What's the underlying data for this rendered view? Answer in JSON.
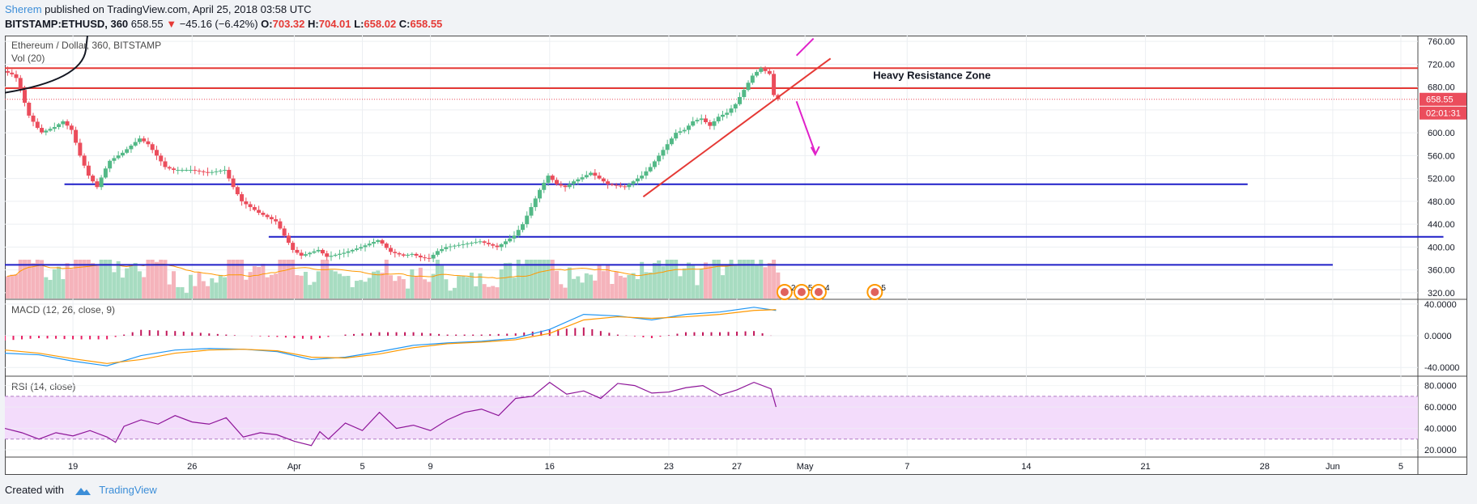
{
  "header": {
    "author": "Sherem",
    "published_text": "published on TradingView.com, April 25, 2018 03:58 UTC",
    "symbol": "BITSTAMP:ETHUSD, 360",
    "last": "658.55",
    "change": "−45.16 (−6.42%)",
    "o_label": "O:",
    "o_value": "703.32",
    "h_label": "H:",
    "h_value": "704.01",
    "l_label": "L:",
    "l_value": "658.02",
    "c_label": "C:",
    "c_value": "658.55"
  },
  "footer": {
    "created_with": "Created with",
    "brand": "TradingView"
  },
  "colors": {
    "up": "#53b987",
    "down": "#eb4d5c",
    "support": "#1f1fc8",
    "resistance": "#e53935",
    "annotation_arrow": "#e021c9",
    "macd": "#2196f3",
    "signal": "#ff9800",
    "rsi_line": "#8e1599",
    "rsi_band": "#f3dcfb",
    "vol_ma": "#ff9800"
  },
  "chart_data": [
    {
      "type": "candlestick",
      "title": "Ethereum / Dollar, 360, BITSTAMP",
      "ylim": [
        310,
        770
      ],
      "yticks": [
        "760.00",
        "720.00",
        "680.00",
        "640.00",
        "600.00",
        "560.00",
        "520.00",
        "480.00",
        "440.00",
        "400.00",
        "360.00",
        "320.00"
      ],
      "ytick_values": [
        760,
        720,
        680,
        640,
        600,
        560,
        520,
        480,
        440,
        400,
        360,
        320
      ],
      "xticks": [
        "19",
        "26",
        "Apr",
        "5",
        "9",
        "16",
        "23",
        "27",
        "May",
        "7",
        "14",
        "21",
        "28",
        "Jun",
        "5"
      ],
      "xtick_days": [
        4,
        11,
        17,
        21,
        25,
        32,
        39,
        43,
        47,
        53,
        60,
        67,
        74,
        78,
        82
      ],
      "x_range_days": [
        0,
        83
      ],
      "price_path": [
        [
          0,
          708
        ],
        [
          0.7,
          700
        ],
        [
          1,
          675
        ],
        [
          1.5,
          630
        ],
        [
          2.2,
          600
        ],
        [
          3,
          610
        ],
        [
          3.5,
          620
        ],
        [
          4,
          605
        ],
        [
          4.5,
          560
        ],
        [
          5,
          525
        ],
        [
          5.5,
          505
        ],
        [
          5.8,
          525
        ],
        [
          6.2,
          550
        ],
        [
          7,
          565
        ],
        [
          8,
          590
        ],
        [
          8.5,
          580
        ],
        [
          9,
          560
        ],
        [
          9.5,
          540
        ],
        [
          10,
          535
        ],
        [
          11,
          535
        ],
        [
          12,
          530
        ],
        [
          13,
          535
        ],
        [
          13.5,
          505
        ],
        [
          14,
          480
        ],
        [
          15,
          460
        ],
        [
          16,
          445
        ],
        [
          16.5,
          420
        ],
        [
          17,
          395
        ],
        [
          17.5,
          385
        ],
        [
          18.5,
          395
        ],
        [
          19,
          383
        ],
        [
          20,
          390
        ],
        [
          21,
          400
        ],
        [
          22,
          412
        ],
        [
          22.3,
          405
        ],
        [
          22.7,
          392
        ],
        [
          23.5,
          385
        ],
        [
          24,
          388
        ],
        [
          24.5,
          382
        ],
        [
          25,
          380
        ],
        [
          25.5,
          393
        ],
        [
          26,
          400
        ],
        [
          27,
          405
        ],
        [
          28,
          410
        ],
        [
          29,
          400
        ],
        [
          30,
          420
        ],
        [
          30.5,
          440
        ],
        [
          31,
          470
        ],
        [
          31.5,
          500
        ],
        [
          32,
          525
        ],
        [
          32.5,
          510
        ],
        [
          33,
          505
        ],
        [
          33.5,
          515
        ],
        [
          34,
          522
        ],
        [
          34.5,
          530
        ],
        [
          35,
          520
        ],
        [
          35.5,
          510
        ],
        [
          36.5,
          505
        ],
        [
          37,
          515
        ],
        [
          37.5,
          525
        ],
        [
          38,
          540
        ],
        [
          38.5,
          560
        ],
        [
          39,
          580
        ],
        [
          39.5,
          600
        ],
        [
          40,
          605
        ],
        [
          40.5,
          620
        ],
        [
          41,
          625
        ],
        [
          41.5,
          612
        ],
        [
          42,
          628
        ],
        [
          42.5,
          635
        ],
        [
          43,
          650
        ],
        [
          43.5,
          675
        ],
        [
          44,
          700
        ],
        [
          44.5,
          713
        ],
        [
          45,
          703
        ],
        [
          45.3,
          658.55
        ]
      ],
      "annotations": [
        {
          "text": "Heavy Resistance Zone",
          "day": 51,
          "price": 694
        },
        {
          "text": "02:01:31",
          "role": "countdown"
        },
        {
          "text": "658.55",
          "role": "last-price"
        }
      ],
      "horizontal_lines": [
        {
          "color": "resistance",
          "price": 713,
          "from_day": 0,
          "to_day": 83
        },
        {
          "color": "resistance",
          "price": 678,
          "from_day": 0,
          "to_day": 83
        },
        {
          "color": "support",
          "price": 510,
          "from_day": 3.5,
          "to_day": 73
        },
        {
          "color": "support",
          "price": 418,
          "from_day": 15.5,
          "to_day": 84.5
        },
        {
          "color": "support",
          "price": 369,
          "from_day": 0,
          "to_day": 78
        }
      ],
      "trendline": {
        "from": [
          37.5,
          488
        ],
        "to": [
          48.5,
          730
        ]
      },
      "events": [
        {
          "label": "2",
          "day": 45.8
        },
        {
          "label": "5",
          "day": 46.8
        },
        {
          "label": "4",
          "day": 47.8
        },
        {
          "label": "5",
          "day": 51.1
        }
      ]
    },
    {
      "type": "bar",
      "title": "Vol (20)"
    },
    {
      "type": "line",
      "title": "MACD (12, 26, close, 9)",
      "ylim": [
        -50,
        45
      ],
      "yticks": [
        "40.0000",
        "0.0000",
        "-40.0000"
      ],
      "ytick_values": [
        40,
        0,
        -40
      ],
      "series": [
        {
          "name": "MACD",
          "values": [
            [
              0,
              -22
            ],
            [
              2,
              -24
            ],
            [
              4,
              -32
            ],
            [
              6,
              -38
            ],
            [
              8,
              -25
            ],
            [
              10,
              -18
            ],
            [
              12,
              -16
            ],
            [
              14,
              -17
            ],
            [
              16,
              -20
            ],
            [
              18,
              -30
            ],
            [
              20,
              -27
            ],
            [
              22,
              -20
            ],
            [
              24,
              -12
            ],
            [
              26,
              -9
            ],
            [
              28,
              -7
            ],
            [
              30,
              -3
            ],
            [
              32,
              8
            ],
            [
              34,
              27
            ],
            [
              36,
              25
            ],
            [
              38,
              20
            ],
            [
              40,
              27
            ],
            [
              42,
              30
            ],
            [
              44,
              36
            ],
            [
              45.3,
              32
            ]
          ]
        },
        {
          "name": "Signal",
          "values": [
            [
              0,
              -18
            ],
            [
              2,
              -22
            ],
            [
              4,
              -29
            ],
            [
              6,
              -35
            ],
            [
              8,
              -30
            ],
            [
              10,
              -22
            ],
            [
              12,
              -18
            ],
            [
              14,
              -17
            ],
            [
              16,
              -19
            ],
            [
              18,
              -27
            ],
            [
              20,
              -28
            ],
            [
              22,
              -23
            ],
            [
              24,
              -15
            ],
            [
              26,
              -10
            ],
            [
              28,
              -8
            ],
            [
              30,
              -5
            ],
            [
              32,
              3
            ],
            [
              34,
              20
            ],
            [
              36,
              24
            ],
            [
              38,
              22
            ],
            [
              40,
              24
            ],
            [
              42,
              27
            ],
            [
              44,
              32
            ],
            [
              45.3,
              33
            ]
          ]
        }
      ]
    },
    {
      "type": "line",
      "title": "RSI (14, close)",
      "ylim": [
        14,
        88
      ],
      "yticks": [
        "80.0000",
        "60.0000",
        "40.0000",
        "20.0000"
      ],
      "ytick_values": [
        80,
        60,
        40,
        20
      ],
      "band": [
        30,
        70
      ],
      "series": [
        {
          "name": "RSI",
          "values": [
            [
              0,
              40
            ],
            [
              1,
              36
            ],
            [
              2,
              30
            ],
            [
              3,
              36
            ],
            [
              4,
              33
            ],
            [
              5,
              38
            ],
            [
              6,
              32
            ],
            [
              6.5,
              27
            ],
            [
              7,
              42
            ],
            [
              8,
              48
            ],
            [
              9,
              44
            ],
            [
              10,
              52
            ],
            [
              11,
              46
            ],
            [
              12,
              44
            ],
            [
              13,
              50
            ],
            [
              14,
              32
            ],
            [
              15,
              36
            ],
            [
              16,
              34
            ],
            [
              17,
              28
            ],
            [
              18,
              24
            ],
            [
              18.5,
              37
            ],
            [
              19,
              30
            ],
            [
              20,
              45
            ],
            [
              21,
              38
            ],
            [
              22,
              55
            ],
            [
              23,
              40
            ],
            [
              24,
              43
            ],
            [
              25,
              38
            ],
            [
              26,
              48
            ],
            [
              27,
              55
            ],
            [
              28,
              58
            ],
            [
              29,
              52
            ],
            [
              30,
              68
            ],
            [
              31,
              70
            ],
            [
              32,
              83
            ],
            [
              33,
              72
            ],
            [
              34,
              75
            ],
            [
              35,
              68
            ],
            [
              36,
              82
            ],
            [
              37,
              80
            ],
            [
              38,
              73
            ],
            [
              39,
              74
            ],
            [
              40,
              78
            ],
            [
              41,
              80
            ],
            [
              42,
              71
            ],
            [
              43,
              76
            ],
            [
              44,
              83
            ],
            [
              45,
              77
            ],
            [
              45.3,
              60
            ]
          ]
        }
      ]
    }
  ]
}
